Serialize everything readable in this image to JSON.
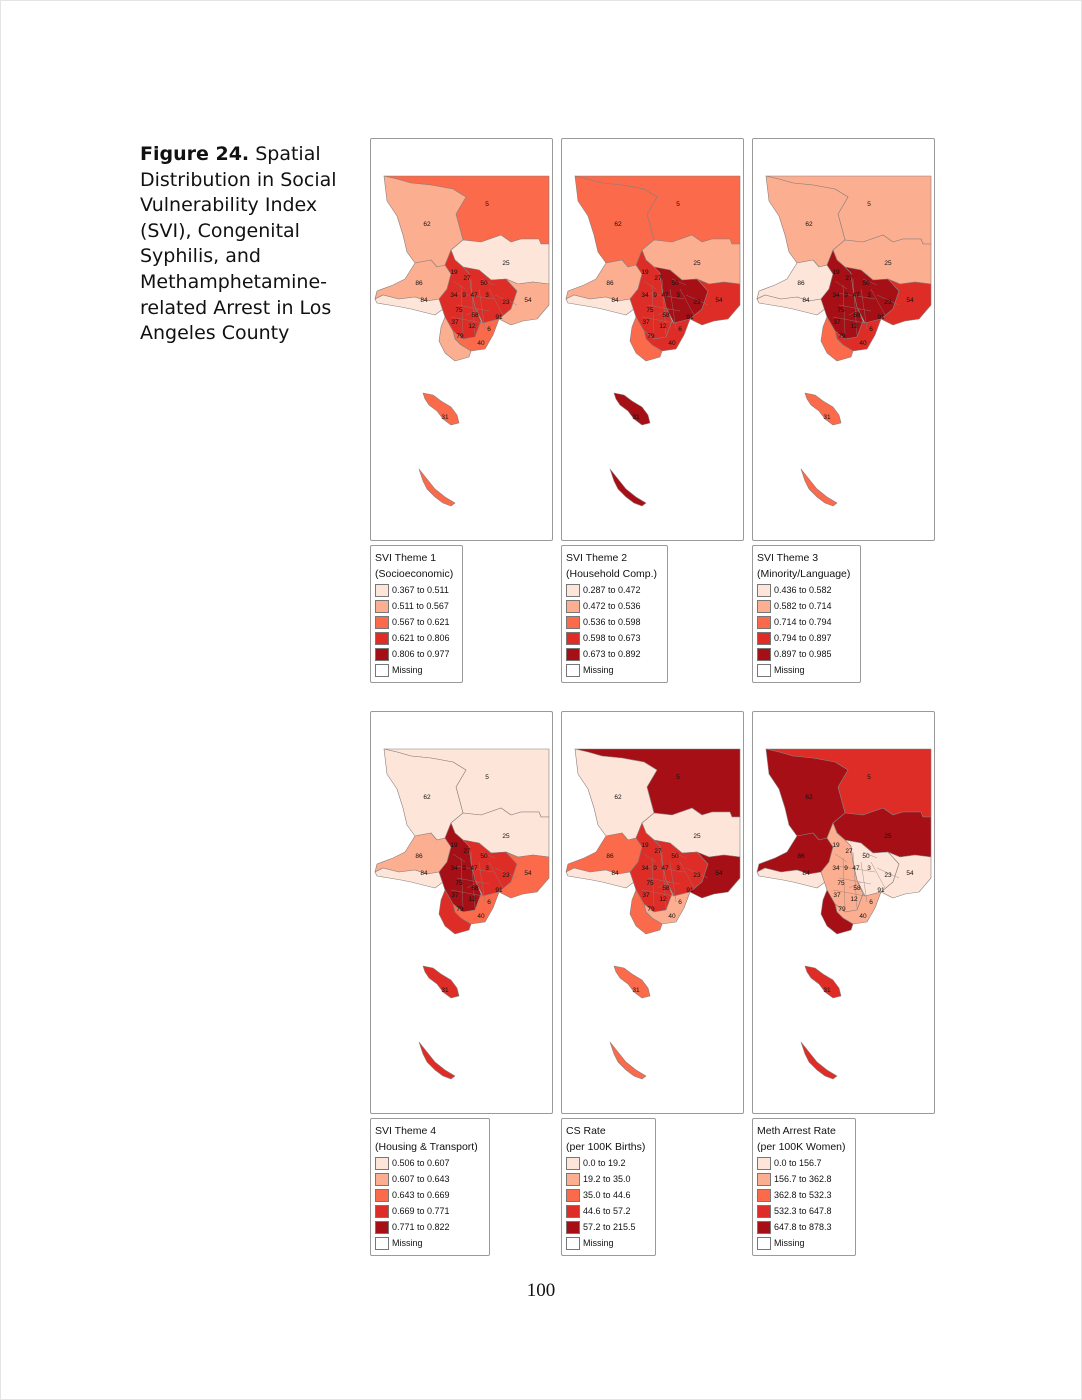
{
  "figure": {
    "label": "Figure 24.",
    "caption": "Spatial Distribution in Social Vulnerability Index (SVI), Congenital Syphilis, and Methamphetamine-related Arrest in Los Angeles County"
  },
  "page_number": "100",
  "palette": [
    "#fee5d9",
    "#fcae91",
    "#fb6a4a",
    "#de2d26",
    "#a50f15"
  ],
  "missing_color": "#ffffff",
  "maps": [
    {
      "legend": {
        "title_line1": "SVI Theme 1",
        "title_line2": "(Socioeconomic)",
        "classes": [
          "0.367 to 0.511",
          "0.511 to 0.567",
          "0.567 to 0.621",
          "0.621 to 0.806",
          "0.806 to 0.977"
        ],
        "missing": "Missing"
      },
      "regions": {
        "north": 2,
        "northwest": 1,
        "east_desert": 0,
        "west_valley": 1,
        "west_coast": 0,
        "central": 3,
        "east_inner": 3,
        "east_outer": 1,
        "south_coast": 1,
        "south_central": 2,
        "island1": 2,
        "island2": 2
      },
      "labels": [
        "5",
        "62",
        "25",
        "19",
        "27",
        "50",
        "86",
        "84",
        "34",
        "9",
        "47",
        "3",
        "23",
        "54",
        "75",
        "58",
        "91",
        "37",
        "12",
        "6",
        "79",
        "40",
        "31"
      ]
    },
    {
      "legend": {
        "title_line1": "SVI Theme 2",
        "title_line2": "(Household Comp.)",
        "classes": [
          "0.287 to 0.472",
          "0.472 to 0.536",
          "0.536 to 0.598",
          "0.598 to 0.673",
          "0.673 to 0.892"
        ],
        "missing": "Missing"
      },
      "regions": {
        "north": 2,
        "northwest": 2,
        "east_desert": 1,
        "west_valley": 1,
        "west_coast": 0,
        "central": 3,
        "east_inner": 4,
        "east_outer": 3,
        "south_coast": 2,
        "south_central": 3,
        "island1": 4,
        "island2": 4
      },
      "labels": [
        "5",
        "62",
        "25",
        "19",
        "27",
        "50",
        "86",
        "84",
        "34",
        "9",
        "47",
        "3",
        "23",
        "54",
        "75",
        "58",
        "91",
        "37",
        "12",
        "6",
        "79",
        "40",
        "31"
      ]
    },
    {
      "legend": {
        "title_line1": "SVI Theme 3",
        "title_line2": "(Minority/Language)",
        "classes": [
          "0.436 to 0.582",
          "0.582 to 0.714",
          "0.714 to 0.794",
          "0.794 to 0.897",
          "0.897 to 0.985"
        ],
        "missing": "Missing"
      },
      "regions": {
        "north": 1,
        "northwest": 1,
        "east_desert": 1,
        "west_valley": 0,
        "west_coast": 0,
        "central": 4,
        "east_inner": 4,
        "east_outer": 3,
        "south_coast": 2,
        "south_central": 3,
        "island1": 2,
        "island2": 2
      },
      "labels": [
        "5",
        "62",
        "25",
        "19",
        "27",
        "50",
        "86",
        "84",
        "34",
        "9",
        "47",
        "3",
        "23",
        "54",
        "75",
        "58",
        "91",
        "37",
        "12",
        "6",
        "79",
        "40",
        "31"
      ]
    },
    {
      "legend": {
        "title_line1": "SVI Theme 4",
        "title_line2": "(Housing & Transport)",
        "classes": [
          "0.506 to 0.607",
          "0.607 to 0.643",
          "0.643 to 0.669",
          "0.669 to 0.771",
          "0.771 to 0.822"
        ],
        "missing": "Missing"
      },
      "regions": {
        "north": 0,
        "northwest": 0,
        "east_desert": 0,
        "west_valley": 1,
        "west_coast": 0,
        "central": 4,
        "east_inner": 3,
        "east_outer": 2,
        "south_coast": 3,
        "south_central": 2,
        "island1": 3,
        "island2": 3
      },
      "labels": [
        "5",
        "62",
        "25",
        "19",
        "27",
        "50",
        "86",
        "84",
        "34",
        "9",
        "47",
        "3",
        "23",
        "54",
        "75",
        "58",
        "91",
        "37",
        "12",
        "6",
        "79",
        "40",
        "31"
      ]
    },
    {
      "legend": {
        "title_line1": "CS Rate",
        "title_line2": "(per 100K Births)",
        "classes": [
          "0.0 to 19.2",
          "19.2 to 35.0",
          "35.0 to 44.6",
          "44.6 to 57.2",
          "57.2 to 215.5"
        ],
        "missing": "Missing"
      },
      "regions": {
        "north": 4,
        "northwest": 0,
        "east_desert": 0,
        "west_valley": 2,
        "west_coast": 0,
        "central": 3,
        "east_inner": 3,
        "east_outer": 4,
        "south_coast": 2,
        "south_central": 1,
        "island1": 2,
        "island2": 2
      },
      "labels": [
        "5",
        "62",
        "25",
        "19",
        "27",
        "50",
        "86",
        "84",
        "34",
        "9",
        "47",
        "3",
        "23",
        "54",
        "75",
        "58",
        "91",
        "37",
        "12",
        "6",
        "79",
        "40",
        "31"
      ]
    },
    {
      "legend": {
        "title_line1": "Meth Arrest Rate",
        "title_line2": "(per 100K Women)",
        "classes": [
          "0.0 to 156.7",
          "156.7 to 362.8",
          "362.8 to 532.3",
          "532.3 to 647.8",
          "647.8 to 878.3"
        ],
        "missing": "Missing"
      },
      "regions": {
        "north": 3,
        "northwest": 4,
        "east_desert": 4,
        "west_valley": 4,
        "west_coast": 0,
        "central": 1,
        "east_inner": 0,
        "east_outer": 0,
        "south_coast": 4,
        "south_central": 1,
        "island1": 3,
        "island2": 3
      },
      "labels": [
        "5",
        "62",
        "25",
        "19",
        "27",
        "50",
        "86",
        "84",
        "34",
        "9",
        "47",
        "3",
        "23",
        "54",
        "75",
        "58",
        "91",
        "37",
        "12",
        "6",
        "79",
        "40",
        "31"
      ]
    }
  ]
}
